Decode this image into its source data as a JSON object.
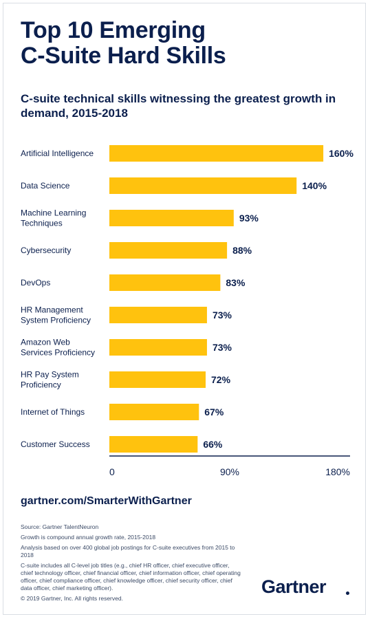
{
  "title_line1": "Top 10 Emerging",
  "title_line2": "C-Suite Hard Skills",
  "chart_data": {
    "type": "bar",
    "orientation": "horizontal",
    "title": "C-suite technical skills witnessing the greatest growth in demand, 2015-2018",
    "categories": [
      [
        "Artificial Intelligence"
      ],
      [
        "Data Science"
      ],
      [
        "Machine Learning",
        "Techniques"
      ],
      [
        "Cybersecurity"
      ],
      [
        "DevOps"
      ],
      [
        "HR Management",
        "System Proficiency"
      ],
      [
        "Amazon Web",
        "Services Proficiency"
      ],
      [
        "HR Pay System",
        "Proficiency"
      ],
      [
        "Internet of Things"
      ],
      [
        "Customer Success"
      ]
    ],
    "values": [
      160,
      140,
      93,
      88,
      83,
      73,
      73,
      72,
      67,
      66
    ],
    "value_labels": [
      "160%",
      "140%",
      "93%",
      "88%",
      "83%",
      "73%",
      "73%",
      "72%",
      "67%",
      "66%"
    ],
    "xlim": [
      0,
      180
    ],
    "x_ticks": [
      0,
      90,
      180
    ],
    "x_tick_labels": [
      "0",
      "90%",
      "180%"
    ],
    "grid": false,
    "bar_color": "#ffc20e"
  },
  "footer": {
    "url": "gartner.com/SmarterWithGartner",
    "source": "Source: Gartner TalentNeuron",
    "note_growth": "Growth is compound annual growth rate, 2015-2018",
    "note_analysis": "Analysis based on over 400 global job postings for C-suite executives from 2015 to 2018",
    "note_titles": "C-suite includes all C-level job titles (e.g., chief HR officer, chief executive officer, chief technology officer, chief financial officer, chief information officer, chief operating officer, chief compliance officer, chief knowledge officer, chief security officer, chief data officer, chief marketing officer).",
    "copyright": "© 2019 Gartner, Inc. All rights reserved.",
    "logo": "Gartner"
  },
  "colors": {
    "navy": "#0b1f4d",
    "bar": "#ffc20e"
  }
}
